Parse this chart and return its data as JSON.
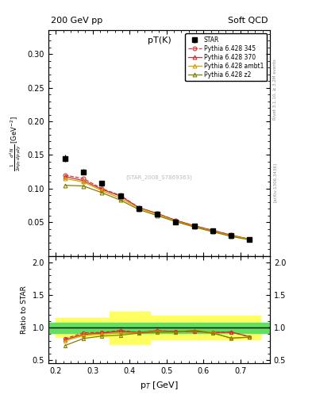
{
  "title_top_left": "200 GeV pp",
  "title_top_right": "Soft QCD",
  "plot_title": "pT(K)",
  "xlabel": "p$_T$ [GeV]",
  "ylabel_ratio": "Ratio to STAR",
  "right_label_top": "Rivet 3.1.10, ≥ 3.2M events",
  "right_label_bottom": "[arXiv:1306.3436]",
  "watermark": "(STAR_2008_S7869363)",
  "star_x": [
    0.225,
    0.275,
    0.325,
    0.375,
    0.425,
    0.475,
    0.525,
    0.575,
    0.625,
    0.675,
    0.725
  ],
  "star_y": [
    0.145,
    0.125,
    0.108,
    0.089,
    0.071,
    0.062,
    0.05,
    0.044,
    0.038,
    0.03,
    0.025
  ],
  "star_yerr": [
    0.005,
    0.004,
    0.004,
    0.003,
    0.003,
    0.002,
    0.002,
    0.002,
    0.002,
    0.002,
    0.001
  ],
  "py345_x": [
    0.225,
    0.275,
    0.325,
    0.375,
    0.425,
    0.475,
    0.525,
    0.575,
    0.625,
    0.675,
    0.725
  ],
  "py345_y": [
    0.12,
    0.115,
    0.1,
    0.09,
    0.072,
    0.063,
    0.053,
    0.045,
    0.038,
    0.031,
    0.025
  ],
  "py345_color": "#e03030",
  "py370_x": [
    0.225,
    0.275,
    0.325,
    0.375,
    0.425,
    0.475,
    0.525,
    0.575,
    0.625,
    0.675,
    0.725
  ],
  "py370_y": [
    0.118,
    0.112,
    0.099,
    0.089,
    0.072,
    0.063,
    0.053,
    0.045,
    0.038,
    0.031,
    0.025
  ],
  "py370_color": "#c83232",
  "pyambt_x": [
    0.225,
    0.275,
    0.325,
    0.375,
    0.425,
    0.475,
    0.525,
    0.575,
    0.625,
    0.675,
    0.725
  ],
  "pyambt_y": [
    0.115,
    0.11,
    0.097,
    0.086,
    0.071,
    0.062,
    0.052,
    0.044,
    0.037,
    0.03,
    0.025
  ],
  "pyambt_color": "#d4a000",
  "pyz2_x": [
    0.225,
    0.275,
    0.325,
    0.375,
    0.425,
    0.475,
    0.525,
    0.575,
    0.625,
    0.675,
    0.725
  ],
  "pyz2_y": [
    0.105,
    0.104,
    0.094,
    0.083,
    0.069,
    0.06,
    0.051,
    0.043,
    0.036,
    0.029,
    0.024
  ],
  "pyz2_color": "#808000",
  "ratio_345": [
    0.828,
    0.92,
    0.926,
    0.955,
    0.924,
    0.952,
    0.94,
    0.94,
    0.926,
    0.93,
    0.86
  ],
  "ratio_370": [
    0.814,
    0.896,
    0.917,
    0.944,
    0.924,
    0.952,
    0.94,
    0.94,
    0.926,
    0.93,
    0.86
  ],
  "ratio_ambt": [
    0.793,
    0.88,
    0.898,
    0.921,
    0.915,
    0.942,
    0.93,
    0.958,
    0.93,
    0.83,
    0.86
  ],
  "ratio_z2": [
    0.724,
    0.832,
    0.87,
    0.883,
    0.915,
    0.929,
    0.932,
    0.958,
    0.913,
    0.84,
    0.85
  ],
  "band_green_lo": 0.92,
  "band_green_hi": 1.08,
  "xlim": [
    0.18,
    0.78
  ],
  "ylim_main": [
    0.0,
    0.335
  ],
  "ylim_ratio": [
    0.45,
    2.1
  ],
  "yticks_main": [
    0.05,
    0.1,
    0.15,
    0.2,
    0.25,
    0.3
  ],
  "yticks_ratio": [
    0.5,
    1.0,
    1.5,
    2.0
  ],
  "bg_color": "#ffffff"
}
